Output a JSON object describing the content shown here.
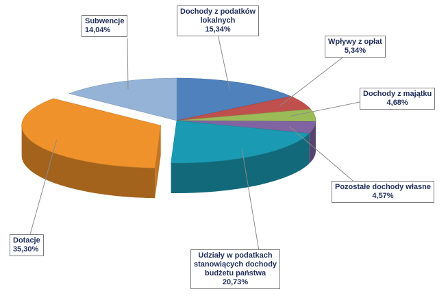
{
  "chart_data": {
    "type": "pie",
    "title": "",
    "style": "3d-exploded",
    "slices": [
      {
        "label": "Dochody z podatków lokalnych",
        "display_label": "Dochody z podatków\nlokalnych",
        "value": 15.34,
        "value_text": "15,34%",
        "color": "#4f81bd"
      },
      {
        "label": "Wpływy z opłat",
        "display_label": "Wpływy z opłat",
        "value": 5.34,
        "value_text": "5,34%",
        "color": "#c0504d"
      },
      {
        "label": "Dochody z majątku",
        "display_label": "Dochody z majątku",
        "value": 4.68,
        "value_text": "4,68%",
        "color": "#9bbb59"
      },
      {
        "label": "Pozostałe dochody własne",
        "display_label": "Pozostałe dochody własne",
        "value": 4.57,
        "value_text": "4,57%",
        "color": "#8064a2"
      },
      {
        "label": "Udziały w podatkach stanowiących dochody budżetu państwa",
        "display_label": "Udziały w podatkach\nstanowiących dochody\nbudżetu państwa",
        "value": 20.73,
        "value_text": "20,73%",
        "color": "#1a9bb3"
      },
      {
        "label": "Dotacje",
        "display_label": "Dotacje",
        "value": 35.3,
        "value_text": "35,30%",
        "color": "#f0922b"
      },
      {
        "label": "Subwencje",
        "display_label": "Subwencje",
        "value": 14.04,
        "value_text": "14,04%",
        "color": "#95b3d7"
      }
    ]
  }
}
